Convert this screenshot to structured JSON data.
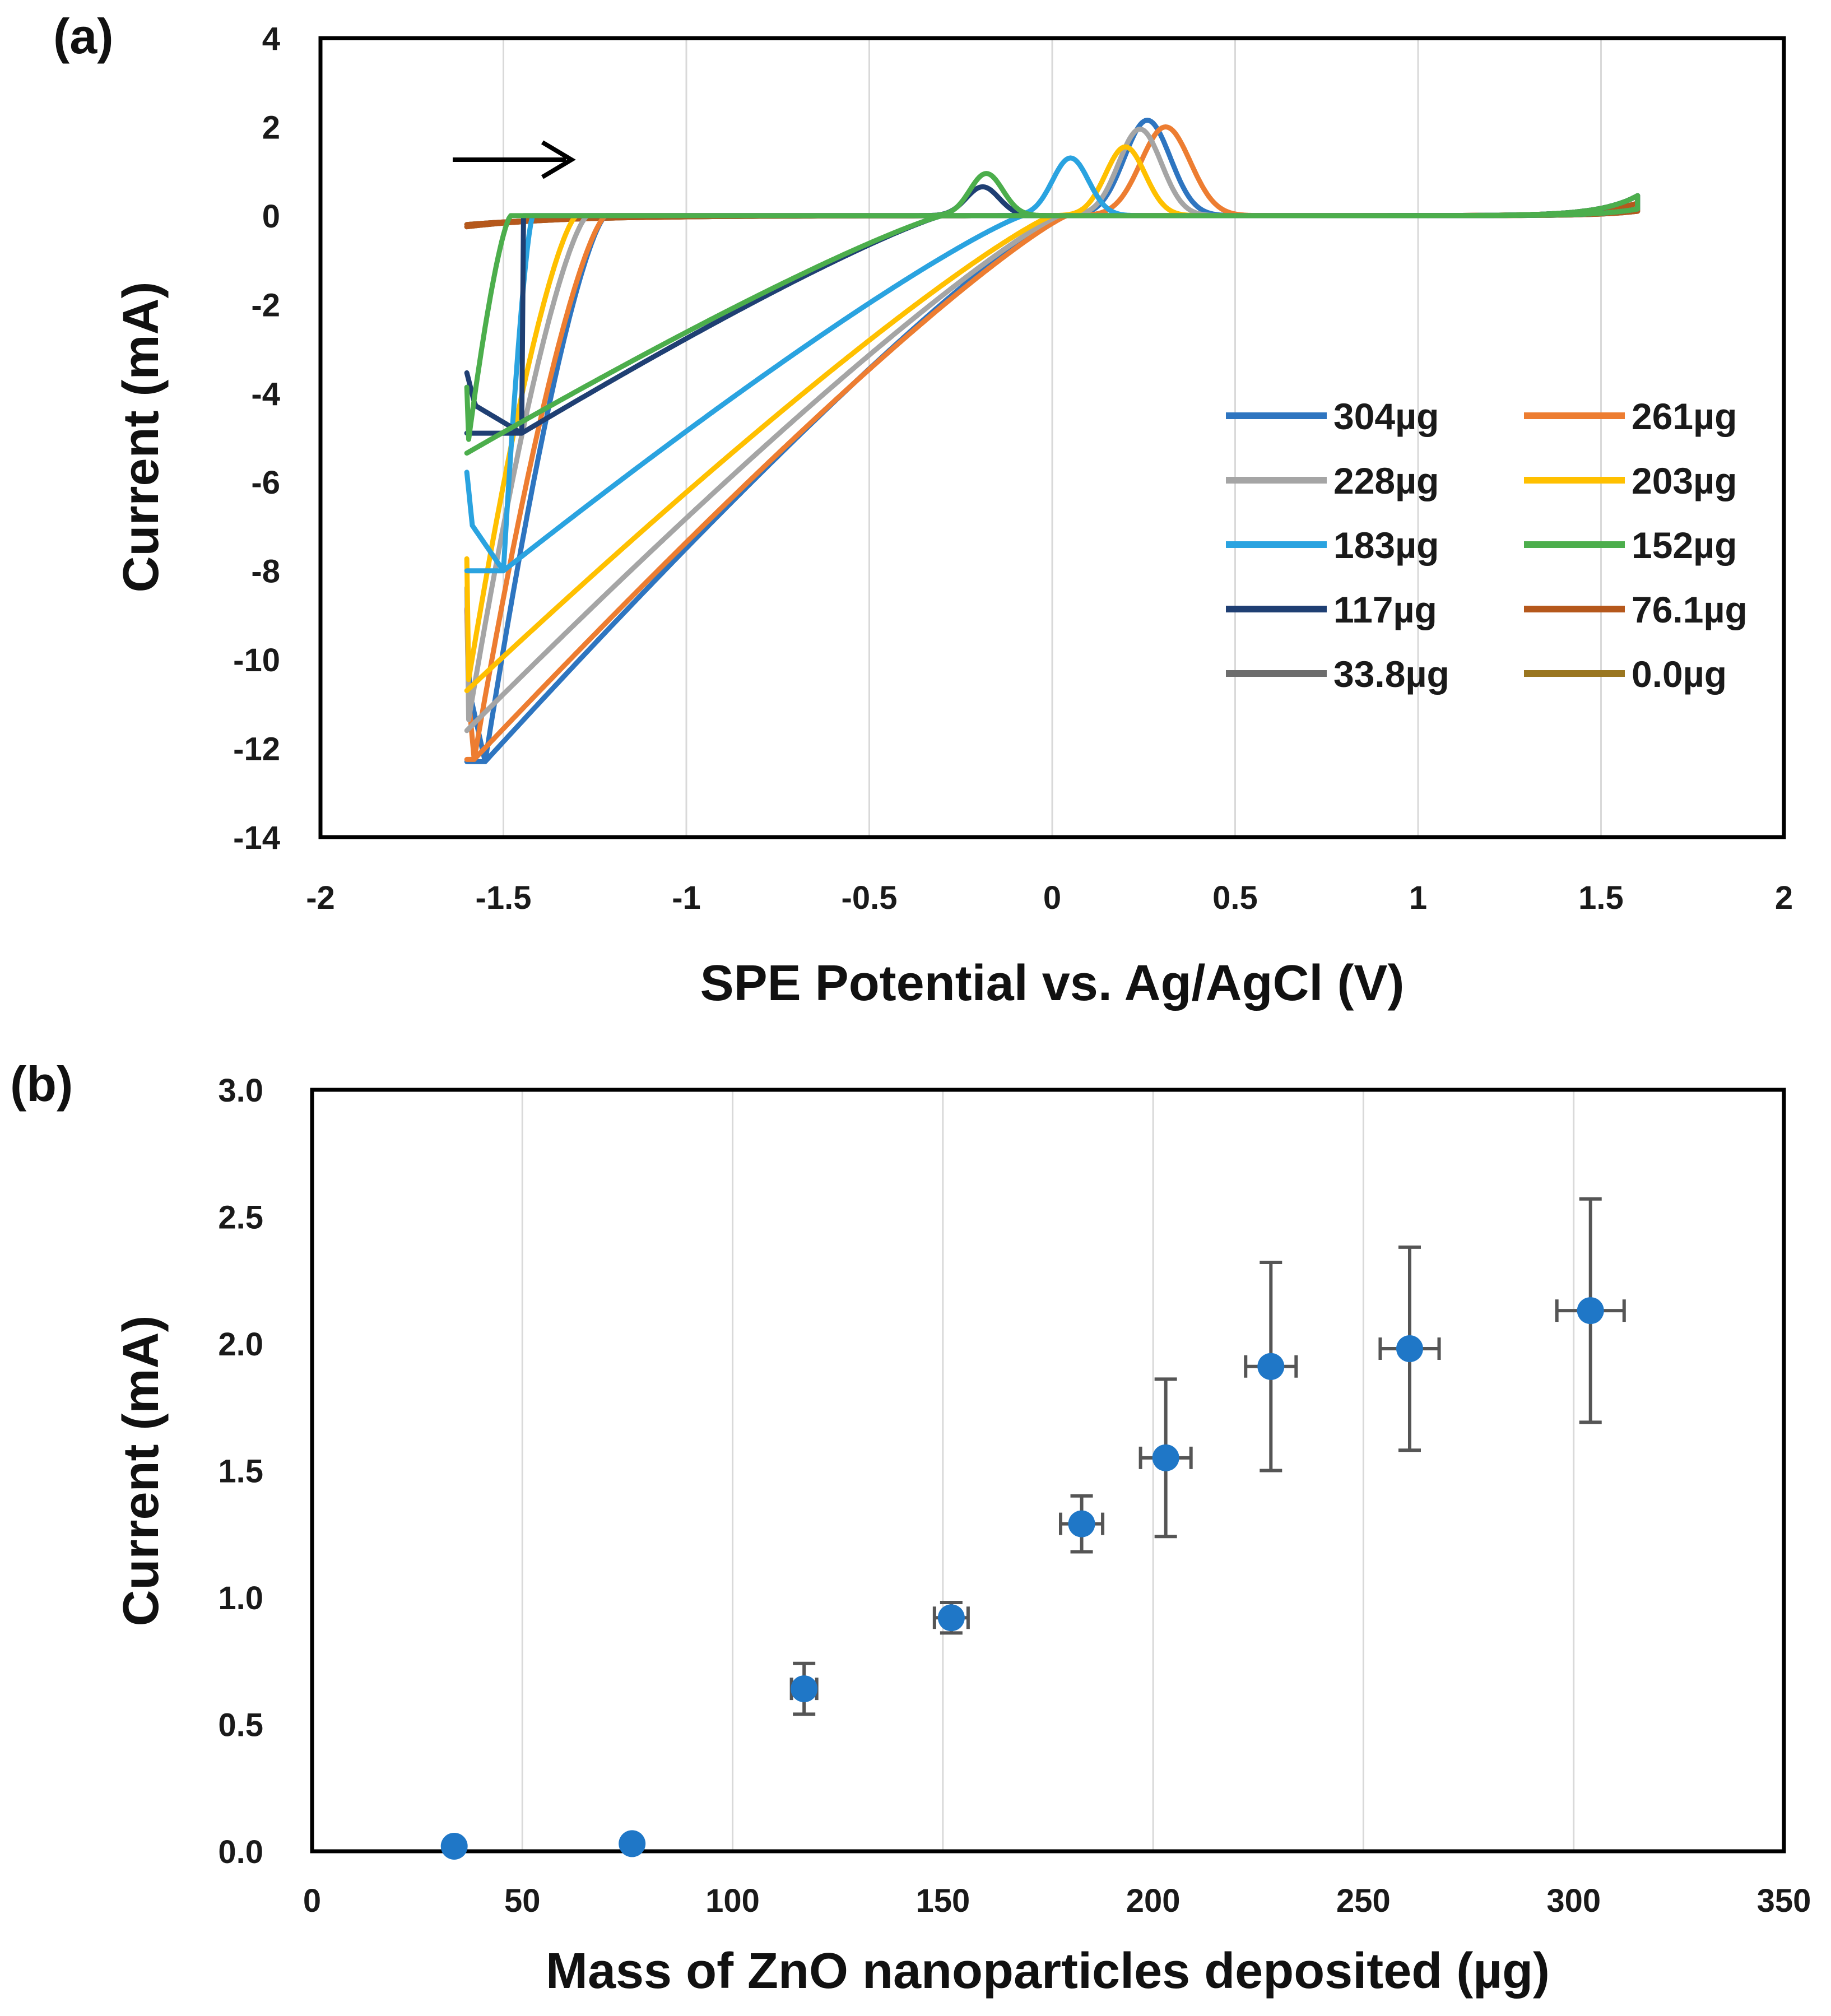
{
  "chart_data": [
    {
      "panel_label": "(a)",
      "type": "line",
      "xlabel": "SPE Potential vs. Ag/AgCl (V)",
      "ylabel": "Current (mA)",
      "xlim": [
        -2,
        2
      ],
      "ylim": [
        -14,
        4
      ],
      "xticks": [
        "-2",
        "-1.5",
        "-1",
        "-0.5",
        "0",
        "0.5",
        "1",
        "1.5",
        "2"
      ],
      "yticks": [
        "4",
        "2",
        "0",
        "-2",
        "-4",
        "-6",
        "-8",
        "-10",
        "-12",
        "-14"
      ],
      "grid": "vertical",
      "legend_position": "lower-right",
      "annotation": "arrow pointing right (scan direction)",
      "series": [
        {
          "name": "304µg",
          "color": "#2e75c0",
          "peak_anodic": [
            0.26,
            2.15
          ],
          "peak_cathodic": [
            -1.55,
            -12.3
          ],
          "onset": -1.22,
          "width": 0.14,
          "zero_cross": 0.02
        },
        {
          "name": "261µg",
          "color": "#ed7d31",
          "peak_anodic": [
            0.31,
            2.0
          ],
          "peak_cathodic": [
            -1.58,
            -12.25
          ],
          "onset": -1.22,
          "width": 0.15,
          "zero_cross": 0.04
        },
        {
          "name": "228µg",
          "color": "#a5a5a5",
          "peak_anodic": [
            0.24,
            1.95
          ],
          "peak_cathodic": [
            -1.6,
            -11.6
          ],
          "onset": -1.27,
          "width": 0.13,
          "zero_cross": 0.02
        },
        {
          "name": "203µg",
          "color": "#ffc000",
          "peak_anodic": [
            0.2,
            1.55
          ],
          "peak_cathodic": [
            -1.6,
            -10.7
          ],
          "onset": -1.3,
          "width": 0.12,
          "zero_cross": 0.0
        },
        {
          "name": "183µg",
          "color": "#2aa3e0",
          "peak_anodic": [
            0.05,
            1.3
          ],
          "peak_cathodic": [
            -1.5,
            -8.0
          ],
          "onset": -1.42,
          "width": 0.11,
          "zero_cross": -0.08
        },
        {
          "name": "152µg",
          "color": "#4cae4c",
          "peak_anodic": [
            -0.18,
            0.95
          ],
          "peak_cathodic": [
            -1.6,
            -5.35
          ],
          "onset": -1.48,
          "width": 0.1,
          "zero_cross": -0.3
        },
        {
          "name": "117µg",
          "color": "#1f3f73",
          "peak_anodic": [
            -0.19,
            0.65
          ],
          "peak_cathodic": [
            -1.45,
            -4.9
          ],
          "onset": -1.55,
          "width": 0.1,
          "zero_cross": -0.3
        },
        {
          "name": "76.1µg",
          "color": "#b5581c",
          "flat": true
        },
        {
          "name": "33.8µg",
          "color": "#6d6d6d",
          "flat": true
        },
        {
          "name": "0.0µg",
          "color": "#9a7620",
          "flat": true
        }
      ]
    },
    {
      "panel_label": "(b)",
      "type": "scatter",
      "xlabel": "Mass of ZnO nanoparticles deposited (µg)",
      "ylabel": "Current (mA)",
      "xlim": [
        0,
        350
      ],
      "ylim": [
        0,
        3
      ],
      "xticks": [
        "0",
        "50",
        "100",
        "150",
        "200",
        "250",
        "300",
        "350"
      ],
      "yticks": [
        "3.0",
        "2.5",
        "2.0",
        "1.5",
        "1.0",
        "0.5",
        "0.0"
      ],
      "grid": "vertical",
      "marker_color": "#1f77c7",
      "errorbar_color": "#555555",
      "points": [
        {
          "x": 33.8,
          "y": 0.02,
          "yerr": 0.0,
          "xerr": 0
        },
        {
          "x": 76.1,
          "y": 0.03,
          "yerr": 0.0,
          "xerr": 0
        },
        {
          "x": 117,
          "y": 0.64,
          "yerr": 0.1,
          "xerr": 3
        },
        {
          "x": 152,
          "y": 0.92,
          "yerr": 0.06,
          "xerr": 4
        },
        {
          "x": 183,
          "y": 1.29,
          "yerr": 0.11,
          "xerr": 5
        },
        {
          "x": 203,
          "y": 1.55,
          "yerr": 0.31,
          "xerr": 6
        },
        {
          "x": 228,
          "y": 1.91,
          "yerr": 0.41,
          "xerr": 6
        },
        {
          "x": 261,
          "y": 1.98,
          "yerr": 0.4,
          "xerr": 7
        },
        {
          "x": 304,
          "y": 2.13,
          "yerr": 0.44,
          "xerr": 8
        }
      ]
    }
  ]
}
